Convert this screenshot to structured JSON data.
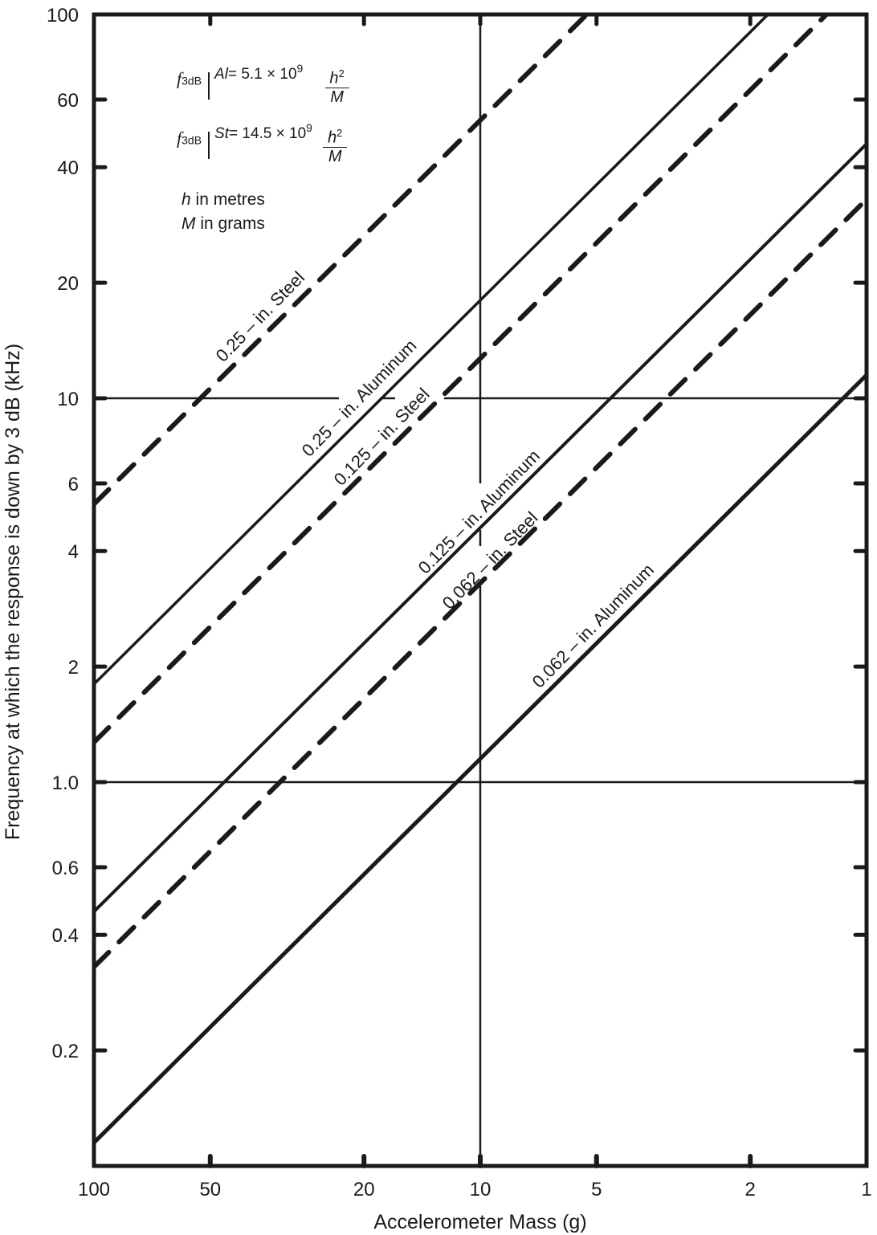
{
  "chart_data": {
    "type": "line",
    "title": "",
    "xlabel": "Accelerometer Mass (g)",
    "ylabel": "Frequency at which the response is down by 3 dB (kHz)",
    "xscale": "log",
    "yscale": "log",
    "x_reversed": true,
    "xlim": [
      100,
      1
    ],
    "ylim": [
      0.1,
      100
    ],
    "x_ticks": [
      100,
      50,
      20,
      10,
      5,
      2,
      1
    ],
    "x_tick_labels": [
      "100",
      "50",
      "20",
      "10",
      "5",
      "2",
      "1"
    ],
    "y_ticks": [
      100,
      60,
      40,
      20,
      10,
      6,
      4,
      2,
      1.0,
      0.6,
      0.4,
      0.2
    ],
    "y_tick_labels": [
      "100",
      "60",
      "40",
      "20",
      "10",
      "6",
      "4",
      "2",
      "1.0",
      "0.6",
      "0.4",
      "0.2"
    ],
    "grid": {
      "x": [
        10
      ],
      "y": [
        10,
        1.0
      ]
    },
    "legend": "none (inline labels)",
    "series": [
      {
        "name": "0.25 – in. Steel",
        "style": "dashed",
        "x": [
          100,
          10,
          5.3
        ],
        "y": [
          5.3,
          53,
          100
        ]
      },
      {
        "name": "0.25 – in. Aluminum",
        "style": "solid",
        "x": [
          100,
          10,
          1.8
        ],
        "y": [
          1.8,
          18,
          100
        ]
      },
      {
        "name": "0.125 – in. Steel",
        "style": "dashed",
        "x": [
          100,
          10,
          1.27
        ],
        "y": [
          1.27,
          12.7,
          100
        ]
      },
      {
        "name": "0.125 – in. Aluminum",
        "style": "solid",
        "x": [
          100,
          10,
          1
        ],
        "y": [
          0.46,
          4.6,
          46
        ]
      },
      {
        "name": "0.062 – in. Steel",
        "style": "dashed",
        "x": [
          100,
          10,
          1
        ],
        "y": [
          0.33,
          3.3,
          33
        ]
      },
      {
        "name": "0.062 – in. Aluminum",
        "style": "solid",
        "x": [
          100,
          10,
          1
        ],
        "y": [
          0.115,
          1.15,
          11.5
        ]
      }
    ],
    "annotations": {
      "formula_al": {
        "lhs": "f",
        "lhs_sub": "3dB",
        "material": "Al",
        "coef": "= 5.1 × 10",
        "exp": "9",
        "num": "h",
        "num_exp": "2",
        "den": "M"
      },
      "formula_st": {
        "lhs": "f",
        "lhs_sub": "3dB",
        "material": "St",
        "coef": "= 14.5 × 10",
        "exp": "9",
        "num": "h",
        "num_exp": "2",
        "den": "M"
      },
      "note_h_var": "h",
      "note_h_text": " in metres",
      "note_m_var": "M",
      "note_m_text": " in grams"
    }
  }
}
